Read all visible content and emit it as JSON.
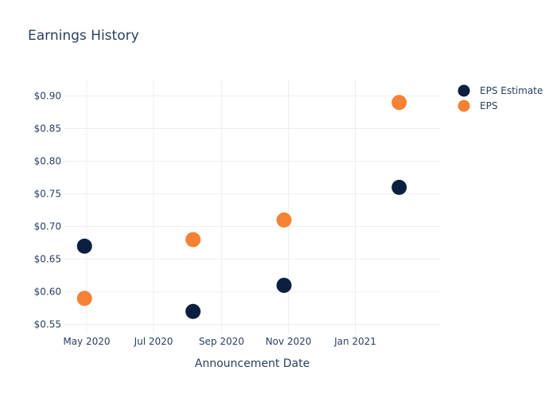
{
  "chart_data": {
    "type": "scatter",
    "title": "Earnings History",
    "xlabel": "Announcement Date",
    "ylabel": "",
    "x_ticks": [
      {
        "date": "2020-05-01",
        "label": "May 2020"
      },
      {
        "date": "2020-07-01",
        "label": "Jul 2020"
      },
      {
        "date": "2020-09-01",
        "label": "Sep 2020"
      },
      {
        "date": "2020-11-01",
        "label": "Nov 2020"
      },
      {
        "date": "2021-01-01",
        "label": "Jan 2021"
      }
    ],
    "y_ticks": [
      {
        "value": 0.55,
        "label": "$0.55"
      },
      {
        "value": 0.6,
        "label": "$0.60"
      },
      {
        "value": 0.65,
        "label": "$0.65"
      },
      {
        "value": 0.7,
        "label": "$0.70"
      },
      {
        "value": 0.75,
        "label": "$0.75"
      },
      {
        "value": 0.8,
        "label": "$0.80"
      },
      {
        "value": 0.85,
        "label": "$0.85"
      },
      {
        "value": 0.9,
        "label": "$0.90"
      }
    ],
    "xlim": [
      "2020-04-10",
      "2021-03-20"
    ],
    "ylim": [
      0.535,
      0.925
    ],
    "grid": true,
    "legend_position": "top-right",
    "series": [
      {
        "name": "EPS Estimate",
        "color": "#0b1f40",
        "points": [
          {
            "x": "2020-04-29",
            "y": 0.67
          },
          {
            "x": "2020-08-06",
            "y": 0.57
          },
          {
            "x": "2020-10-28",
            "y": 0.61
          },
          {
            "x": "2021-02-10",
            "y": 0.76
          }
        ]
      },
      {
        "name": "EPS",
        "color": "#f58135",
        "points": [
          {
            "x": "2020-04-29",
            "y": 0.59
          },
          {
            "x": "2020-08-06",
            "y": 0.68
          },
          {
            "x": "2020-10-28",
            "y": 0.71
          },
          {
            "x": "2021-02-10",
            "y": 0.89
          }
        ]
      }
    ]
  }
}
